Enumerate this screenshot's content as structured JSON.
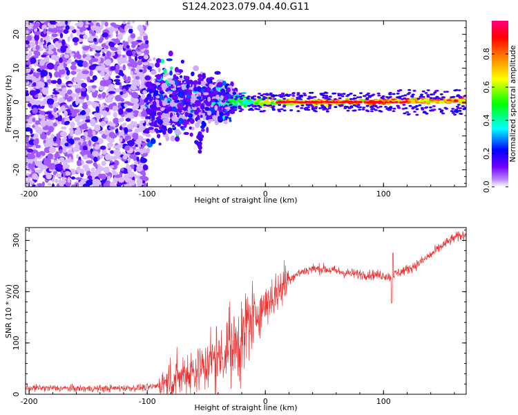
{
  "figure": {
    "title": "S124.2023.079.04.40.G11"
  },
  "chart_data": [
    {
      "type": "heatmap",
      "title": "S124.2023.079.04.40.G11",
      "xlabel": "Height of straight line (km)",
      "ylabel": "Frequency (Hz)",
      "xlim": [
        -203,
        170
      ],
      "ylim": [
        -25,
        24
      ],
      "xticks": [
        -200,
        -100,
        0,
        100
      ],
      "yticks": [
        -20,
        -10,
        0,
        10,
        20
      ],
      "colorbar": {
        "label": "Normalized spectral amplitude",
        "range": [
          0,
          1
        ],
        "ticks": [
          0.0,
          0.2,
          0.4,
          0.6,
          0.8
        ],
        "colormap": [
          "#ffffff",
          "#c090ff",
          "#7000ff",
          "#0000ff",
          "#00ffff",
          "#00ff00",
          "#ffff00",
          "#ff8000",
          "#ff0000",
          "#ff0080"
        ]
      },
      "description_regions": [
        {
          "x_range": [
            -203,
            -100
          ],
          "f_range": [
            -25,
            24
          ],
          "amplitude": 0.1
        },
        {
          "x_range": [
            -100,
            -30
          ],
          "f_range": [
            -13,
            12
          ],
          "amplitude": 0.2
        },
        {
          "x_range": [
            -30,
            10
          ],
          "f_range": [
            -3,
            3
          ],
          "amplitude": 0.6
        },
        {
          "x_range": [
            10,
            170
          ],
          "f_range": [
            -1,
            1
          ],
          "amplitude": 0.85
        }
      ],
      "grid": false
    },
    {
      "type": "line",
      "xlabel": "Height of straight line (km)",
      "ylabel": "SNR (10 * v/v)",
      "xlim": [
        -203,
        170
      ],
      "ylim": [
        0,
        325
      ],
      "xticks": [
        -200,
        -100,
        0,
        100
      ],
      "yticks": [
        0,
        100,
        200,
        300
      ],
      "color": "#ee3030",
      "grid": false,
      "x": [
        -203,
        -180,
        -160,
        -140,
        -120,
        -100,
        -90,
        -80,
        -70,
        -60,
        -50,
        -40,
        -30,
        -20,
        -10,
        0,
        10,
        20,
        30,
        40,
        50,
        60,
        70,
        80,
        90,
        100,
        107,
        110,
        120,
        130,
        140,
        150,
        160,
        170
      ],
      "y": [
        12,
        12,
        11,
        11,
        12,
        13,
        17,
        28,
        38,
        48,
        60,
        75,
        90,
        115,
        150,
        175,
        200,
        225,
        238,
        245,
        244,
        240,
        236,
        234,
        233,
        232,
        228,
        235,
        243,
        255,
        272,
        290,
        305,
        312
      ]
    }
  ]
}
